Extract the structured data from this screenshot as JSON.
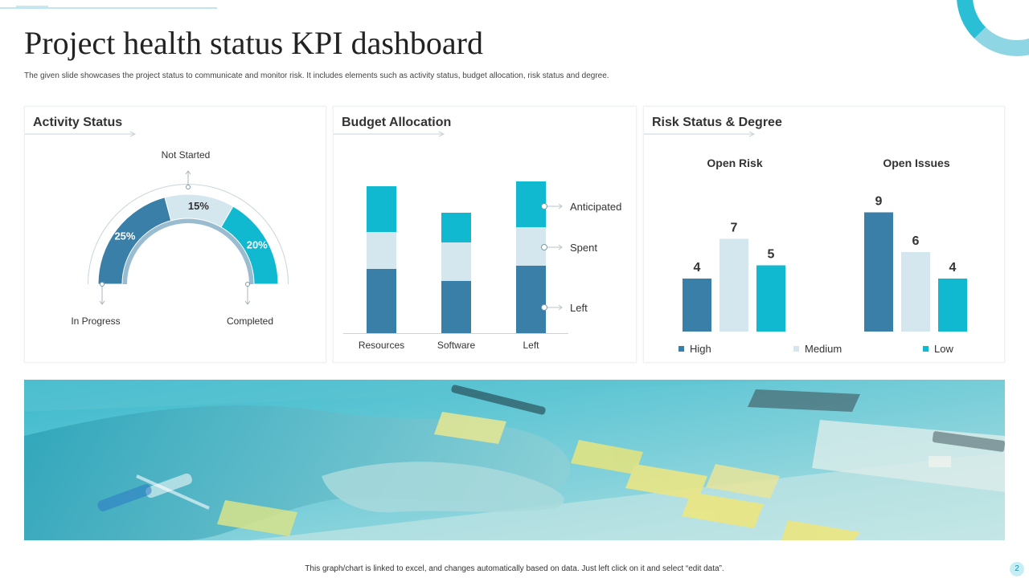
{
  "title": "Project health status KPI dashboard",
  "subtitle": "The given slide showcases the project status  to communicate and monitor risk. It includes elements  such as activity status, budget allocation, risk status and degree.",
  "footer": "This graph/chart is linked to excel, and changes automatically based on data. Just left click on it and select “edit data”.",
  "page_number": "2",
  "colors": {
    "dark": "#3a7fa8",
    "light": "#d4e6ee",
    "cyan": "#10b8d0"
  },
  "cards": {
    "activity": {
      "title": "Activity  Status"
    },
    "budget": {
      "title": "Budget Allocation"
    },
    "risk": {
      "title": "Risk Status & Degree"
    }
  },
  "chart_data": [
    {
      "type": "pie",
      "subtype": "semi-donut",
      "title": "Activity  Status",
      "segments": [
        {
          "label": "In Progress",
          "value_label": "25%",
          "value": 25,
          "color": "#3a7fa8"
        },
        {
          "label": "Not Started",
          "value_label": "15%",
          "value": 15,
          "color": "#d4e6ee"
        },
        {
          "label": "Completed",
          "value_label": "20%",
          "value": 20,
          "color": "#10b8d0"
        }
      ]
    },
    {
      "type": "bar",
      "stacked": true,
      "title": "Budget Allocation",
      "categories": [
        "Resources",
        "Software",
        "Left"
      ],
      "series": [
        {
          "name": "Left",
          "color": "#3a7fa8",
          "values": [
            80,
            65,
            84
          ]
        },
        {
          "name": "Spent",
          "color": "#d4e6ee",
          "values": [
            46,
            48,
            48
          ]
        },
        {
          "name": "Anticipated",
          "color": "#10b8d0",
          "values": [
            57,
            37,
            57
          ]
        }
      ]
    },
    {
      "type": "bar",
      "title": "Risk Status & Degree",
      "groups": [
        "Open Risk",
        "Open Issues"
      ],
      "series": [
        {
          "name": "High",
          "color": "#3a7fa8",
          "values": [
            4,
            9
          ]
        },
        {
          "name": "Medium",
          "color": "#d4e6ee",
          "values": [
            7,
            6
          ]
        },
        {
          "name": "Low",
          "color": "#10b8d0",
          "values": [
            5,
            4
          ]
        }
      ],
      "legend": "bottom"
    }
  ]
}
